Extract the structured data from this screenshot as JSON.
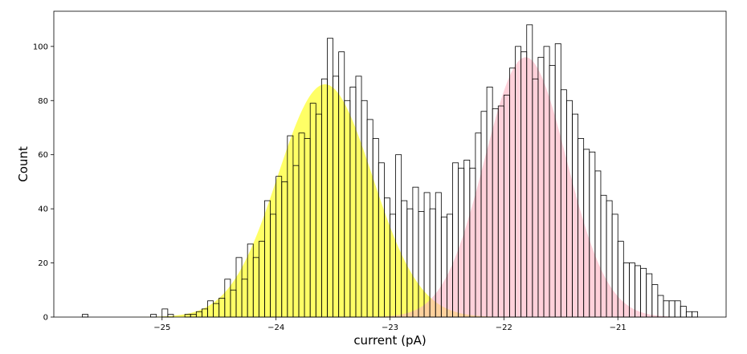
{
  "chart_data": {
    "type": "bar",
    "subtype": "histogram-with-gaussian-fits",
    "xlabel": "current (pA)",
    "ylabel": "Count",
    "xlim": [
      -25.95,
      -20.05
    ],
    "ylim": [
      0,
      113
    ],
    "bin_width": 0.05,
    "x_ticks": [
      -25,
      -24,
      -23,
      -22,
      -21
    ],
    "x_tick_labels": [
      "−25",
      "−24",
      "−23",
      "−22",
      "−21"
    ],
    "y_ticks": [
      0,
      20,
      40,
      60,
      80,
      100
    ],
    "y_tick_labels": [
      "0",
      "20",
      "40",
      "60",
      "80",
      "100"
    ],
    "grid": false,
    "histogram": {
      "bin_start": -25.7,
      "counts": [
        1,
        0,
        0,
        0,
        0,
        0,
        0,
        0,
        0,
        0,
        0,
        0,
        1,
        0,
        3,
        1,
        0,
        0,
        1,
        1,
        2,
        3,
        6,
        5,
        7,
        14,
        10,
        22,
        14,
        27,
        22,
        28,
        43,
        38,
        52,
        50,
        67,
        56,
        68,
        66,
        79,
        75,
        88,
        103,
        89,
        98,
        80,
        85,
        89,
        80,
        73,
        66,
        57,
        44,
        38,
        60,
        43,
        40,
        48,
        39,
        46,
        40,
        46,
        37,
        38,
        57,
        55,
        58,
        55,
        68,
        76,
        85,
        77,
        78,
        82,
        92,
        100,
        98,
        108,
        88,
        96,
        100,
        93,
        101,
        84,
        80,
        75,
        66,
        62,
        61,
        54,
        45,
        43,
        38,
        28,
        20,
        20,
        19,
        18,
        16,
        12,
        8,
        6,
        6,
        6,
        4,
        2,
        2
      ]
    },
    "fits": [
      {
        "mu": -23.57,
        "sigma": 0.415,
        "amp": 86,
        "color": "#ffff40",
        "edge": "#e8e800",
        "opacity": 0.8
      },
      {
        "mu": -21.81,
        "sigma": 0.36,
        "amp": 96,
        "color": "#ffb3c1",
        "edge": "#ff9fb0",
        "opacity": 0.6
      }
    ],
    "colors": {
      "bar_edge": "#000000",
      "bar_fill": "none",
      "axes": "#000000",
      "background": "#ffffff"
    }
  }
}
